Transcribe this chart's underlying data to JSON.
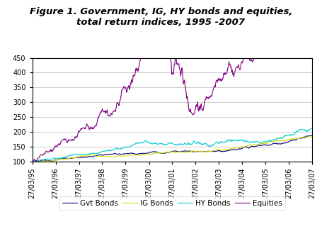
{
  "title_line1": "Figure 1. Government, IG, HY bonds and equities,",
  "title_line2": "total return indices, 1995 -2007",
  "ylim": [
    100,
    450
  ],
  "yticks": [
    100,
    150,
    200,
    250,
    300,
    350,
    400,
    450
  ],
  "x_labels": [
    "27/03/95",
    "27/03/96",
    "27/03/97",
    "27/03/98",
    "27/03/99",
    "27/03/00",
    "27/03/01",
    "27/03/02",
    "27/03/03",
    "27/03/04",
    "27/03/05",
    "27/03/06",
    "27/03/07"
  ],
  "legend_labels": [
    "Gvt Bonds",
    "IG Bonds",
    "HY Bonds",
    "Equities"
  ],
  "gvt_color": "#000080",
  "ig_color": "#DDDD00",
  "hy_color": "#00CCCC",
  "eq_color": "#800080",
  "title_fontsize": 9.5,
  "tick_fontsize": 7,
  "legend_fontsize": 7.5
}
